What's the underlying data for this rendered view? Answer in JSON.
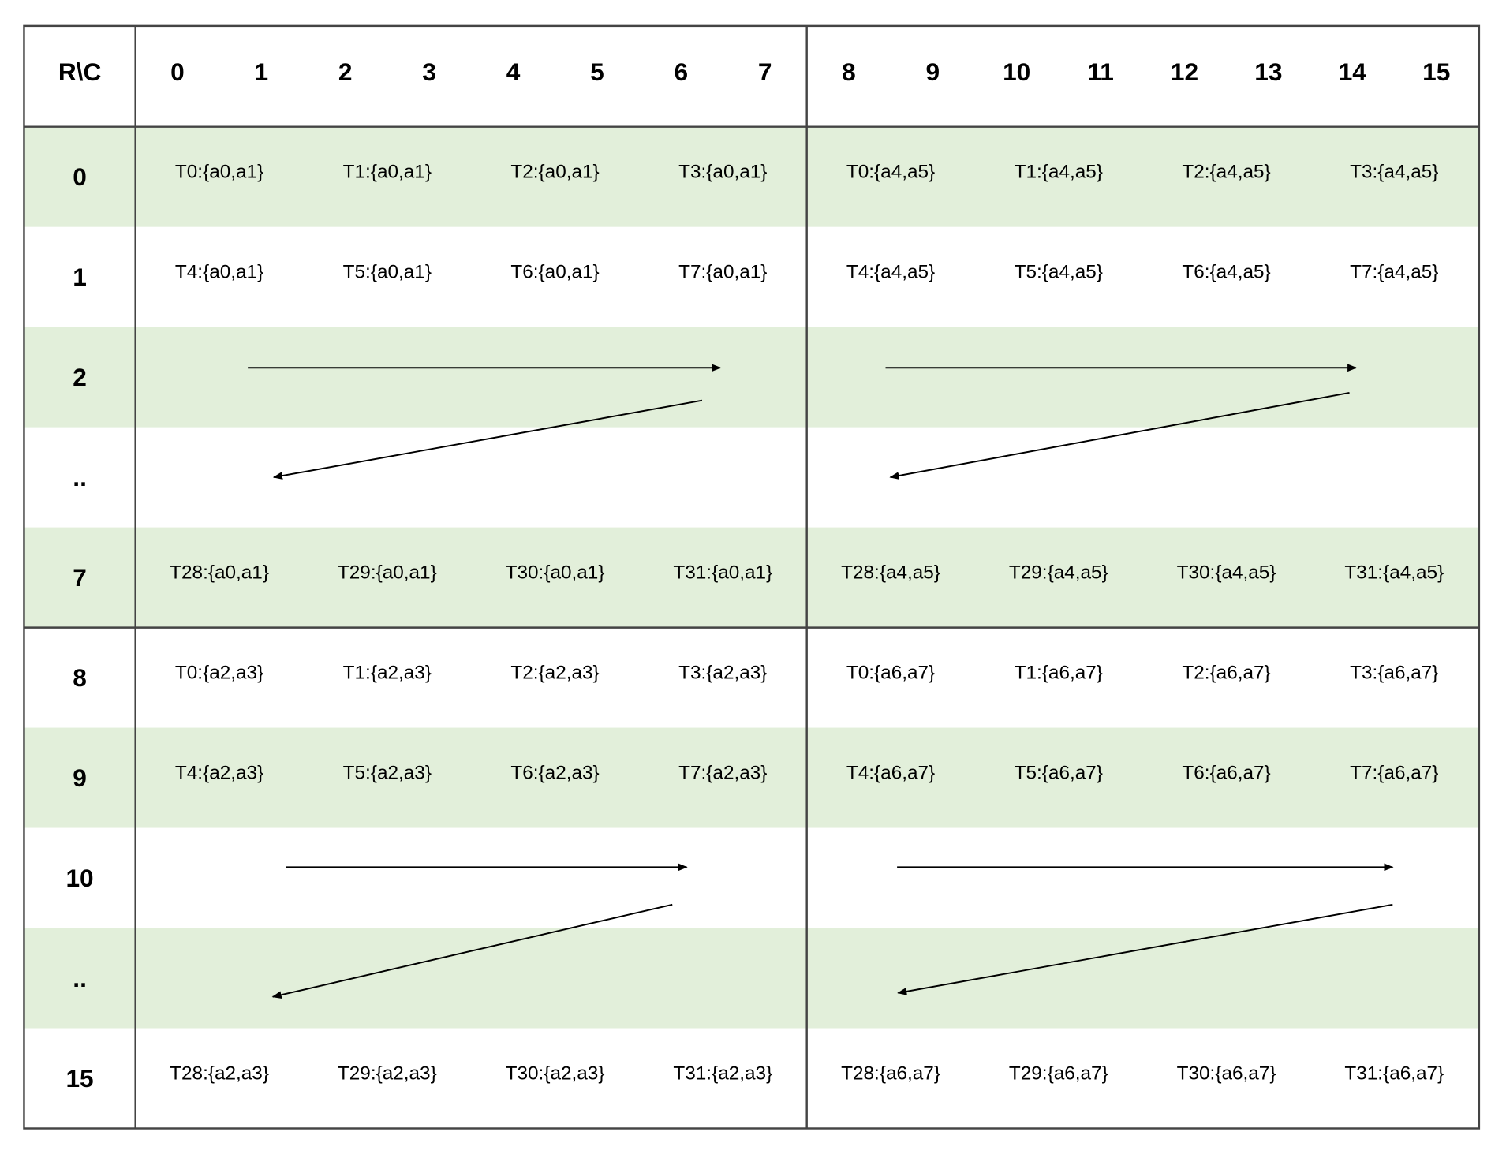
{
  "header": {
    "corner": "R\\C",
    "columns": [
      "0",
      "1",
      "2",
      "3",
      "4",
      "5",
      "6",
      "7",
      "8",
      "9",
      "10",
      "11",
      "12",
      "13",
      "14",
      "15"
    ]
  },
  "rows": [
    {
      "label": "0",
      "cells": [
        "T0:{a0,a1}",
        "T1:{a0,a1}",
        "T2:{a0,a1}",
        "T3:{a0,a1}",
        "T0:{a4,a5}",
        "T1:{a4,a5}",
        "T2:{a4,a5}",
        "T3:{a4,a5}"
      ]
    },
    {
      "label": "1",
      "cells": [
        "T4:{a0,a1}",
        "T5:{a0,a1}",
        "T6:{a0,a1}",
        "T7:{a0,a1}",
        "T4:{a4,a5}",
        "T5:{a4,a5}",
        "T6:{a4,a5}",
        "T7:{a4,a5}"
      ]
    },
    {
      "label": "2"
    },
    {
      "label": ".."
    },
    {
      "label": "7",
      "cells": [
        "T28:{a0,a1}",
        "T29:{a0,a1}",
        "T30:{a0,a1}",
        "T31:{a0,a1}",
        "T28:{a4,a5}",
        "T29:{a4,a5}",
        "T30:{a4,a5}",
        "T31:{a4,a5}"
      ]
    },
    {
      "label": "8",
      "cells": [
        "T0:{a2,a3}",
        "T1:{a2,a3}",
        "T2:{a2,a3}",
        "T3:{a2,a3}",
        "T0:{a6,a7}",
        "T1:{a6,a7}",
        "T2:{a6,a7}",
        "T3:{a6,a7}"
      ]
    },
    {
      "label": "9",
      "cells": [
        "T4:{a2,a3}",
        "T5:{a2,a3}",
        "T6:{a2,a3}",
        "T7:{a2,a3}",
        "T4:{a6,a7}",
        "T5:{a6,a7}",
        "T6:{a6,a7}",
        "T7:{a6,a7}"
      ]
    },
    {
      "label": "10"
    },
    {
      "label": ".."
    },
    {
      "label": "15",
      "cells": [
        "T28:{a2,a3}",
        "T29:{a2,a3}",
        "T30:{a2,a3}",
        "T31:{a2,a3}",
        "T28:{a6,a7}",
        "T29:{a6,a7}",
        "T30:{a6,a7}",
        "T31:{a6,a7}"
      ]
    }
  ]
}
